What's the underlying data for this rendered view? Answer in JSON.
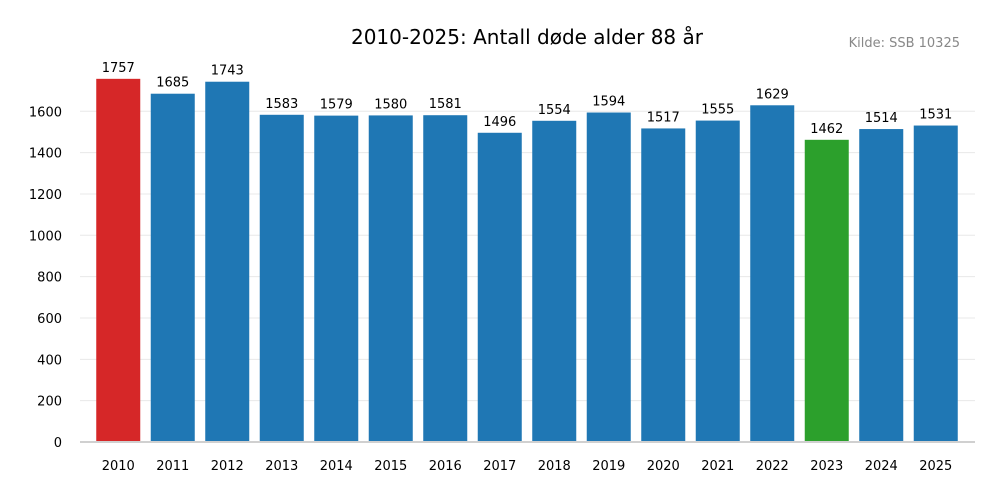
{
  "chart_data": {
    "type": "bar",
    "title": "2010-2025: Antall døde alder 88 år",
    "source": "Kilde: SSB 10325",
    "categories": [
      "2010",
      "2011",
      "2012",
      "2013",
      "2014",
      "2015",
      "2016",
      "2017",
      "2018",
      "2019",
      "2020",
      "2021",
      "2022",
      "2023",
      "2024",
      "2025"
    ],
    "values": [
      1757,
      1685,
      1743,
      1583,
      1579,
      1580,
      1581,
      1496,
      1554,
      1594,
      1517,
      1555,
      1629,
      1462,
      1514,
      1531
    ],
    "colors": [
      "#d62728",
      "#1f77b4",
      "#1f77b4",
      "#1f77b4",
      "#1f77b4",
      "#1f77b4",
      "#1f77b4",
      "#1f77b4",
      "#1f77b4",
      "#1f77b4",
      "#1f77b4",
      "#1f77b4",
      "#1f77b4",
      "#2ca02c",
      "#1f77b4",
      "#1f77b4"
    ],
    "xlabel": "",
    "ylabel": "",
    "ylim": [
      0,
      1800
    ],
    "yticks": [
      0,
      200,
      400,
      600,
      800,
      1000,
      1200,
      1400,
      1600
    ],
    "grid": true,
    "legend": "none"
  }
}
